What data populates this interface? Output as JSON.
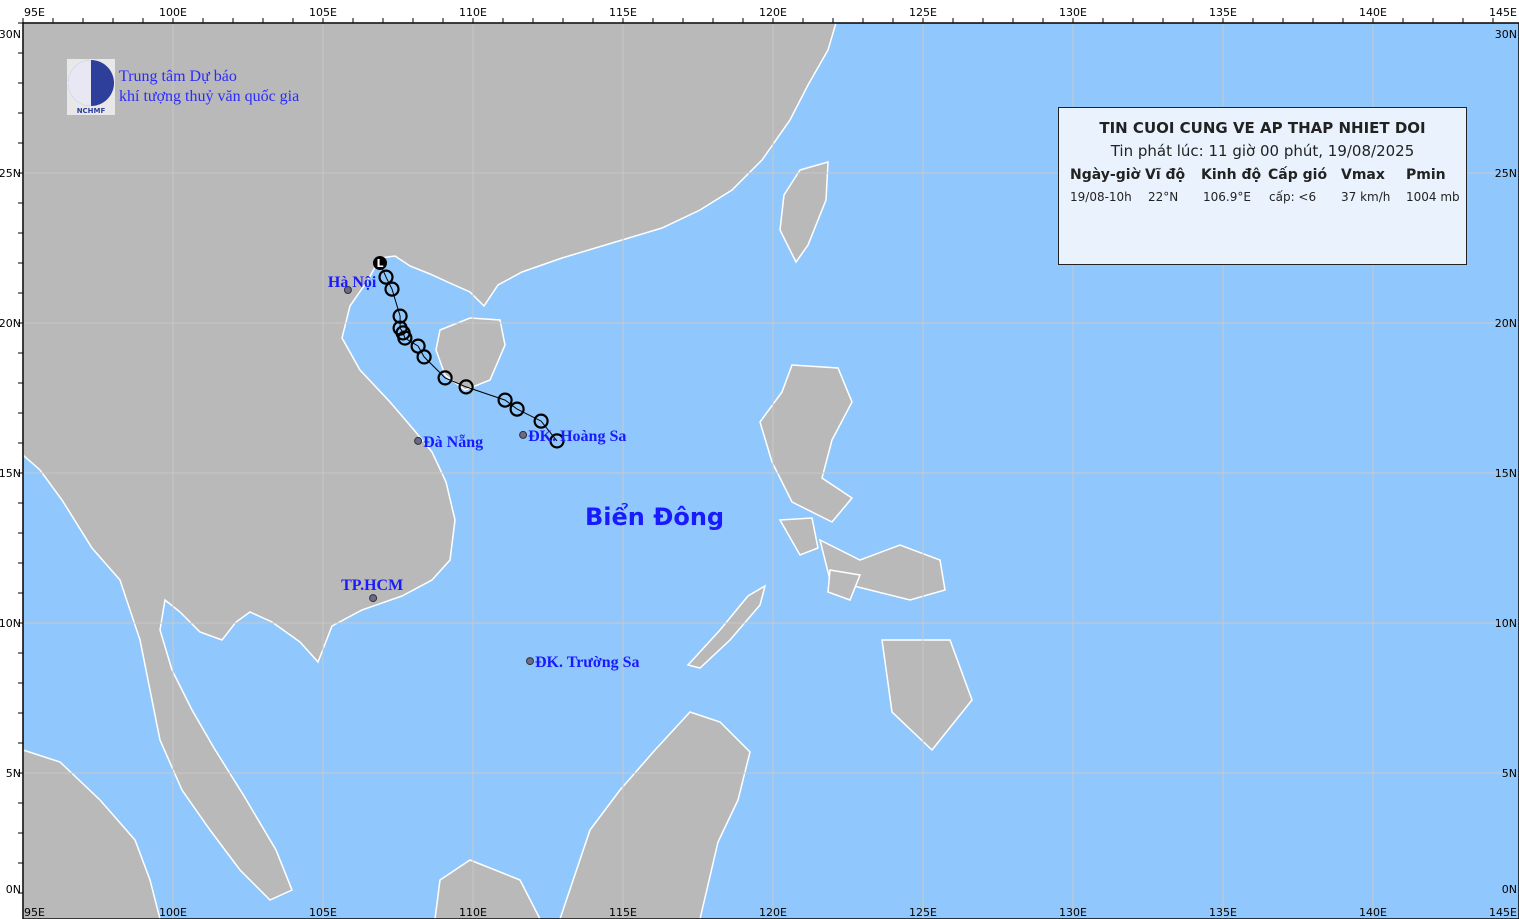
{
  "map": {
    "lon_ticks": [
      "95E",
      "100E",
      "105E",
      "110E",
      "115E",
      "120E",
      "125E",
      "130E",
      "135E",
      "140E",
      "145E"
    ],
    "lat_ticks": [
      "30N",
      "25N",
      "20N",
      "15N",
      "10N",
      "5N",
      "0N"
    ],
    "colors": {
      "sea": "#90c8fd",
      "land": "#b9b9b9",
      "grid": "#c8c8c8",
      "coast": "#ffffff",
      "label": "#1a1aff"
    },
    "sea_label": "Biển Đông"
  },
  "logo": {
    "line1": "Trung tâm Dự báo",
    "line2": "khí tượng thuỷ văn quốc gia",
    "emblem_text": "NCHMF"
  },
  "places": [
    {
      "name": "Hà Nội",
      "lon": 105.83,
      "lat": 21.1
    },
    {
      "name": "Đà Nẵng",
      "lon": 108.17,
      "lat": 16.07
    },
    {
      "name": "ĐK. Hoàng Sa",
      "lon": 111.67,
      "lat": 16.27
    },
    {
      "name": "TP.HCM",
      "lon": 106.67,
      "lat": 10.83
    },
    {
      "name": "ĐK. Trường Sa",
      "lon": 111.9,
      "lat": 8.73
    }
  ],
  "track": {
    "current_symbol": "L",
    "points": [
      {
        "lon": 106.9,
        "lat": 22.0
      },
      {
        "lon": 107.1,
        "lat": 21.53
      },
      {
        "lon": 107.3,
        "lat": 21.13
      },
      {
        "lon": 107.57,
        "lat": 20.23
      },
      {
        "lon": 107.57,
        "lat": 19.83
      },
      {
        "lon": 107.67,
        "lat": 19.67
      },
      {
        "lon": 107.73,
        "lat": 19.5
      },
      {
        "lon": 108.17,
        "lat": 19.23
      },
      {
        "lon": 108.37,
        "lat": 18.87
      },
      {
        "lon": 109.07,
        "lat": 18.17
      },
      {
        "lon": 109.77,
        "lat": 17.87
      },
      {
        "lon": 111.07,
        "lat": 17.43
      },
      {
        "lon": 111.47,
        "lat": 17.13
      },
      {
        "lon": 112.27,
        "lat": 16.73
      },
      {
        "lon": 112.8,
        "lat": 16.07
      }
    ]
  },
  "bulletin": {
    "title": "TIN CUOI CUNG VE AP THAP NHIET DOI",
    "issued": "Tin phát lúc: 11 giờ 00 phút, 19/08/2025",
    "headers": [
      "Ngày-giờ",
      "Vĩ độ",
      "Kinh độ",
      "Cấp gió",
      "Vmax",
      "Pmin"
    ],
    "row": [
      "19/08-10h",
      "22°N",
      "106.9°E",
      "cấp: <6",
      "37 km/h",
      "1004 mb"
    ]
  }
}
